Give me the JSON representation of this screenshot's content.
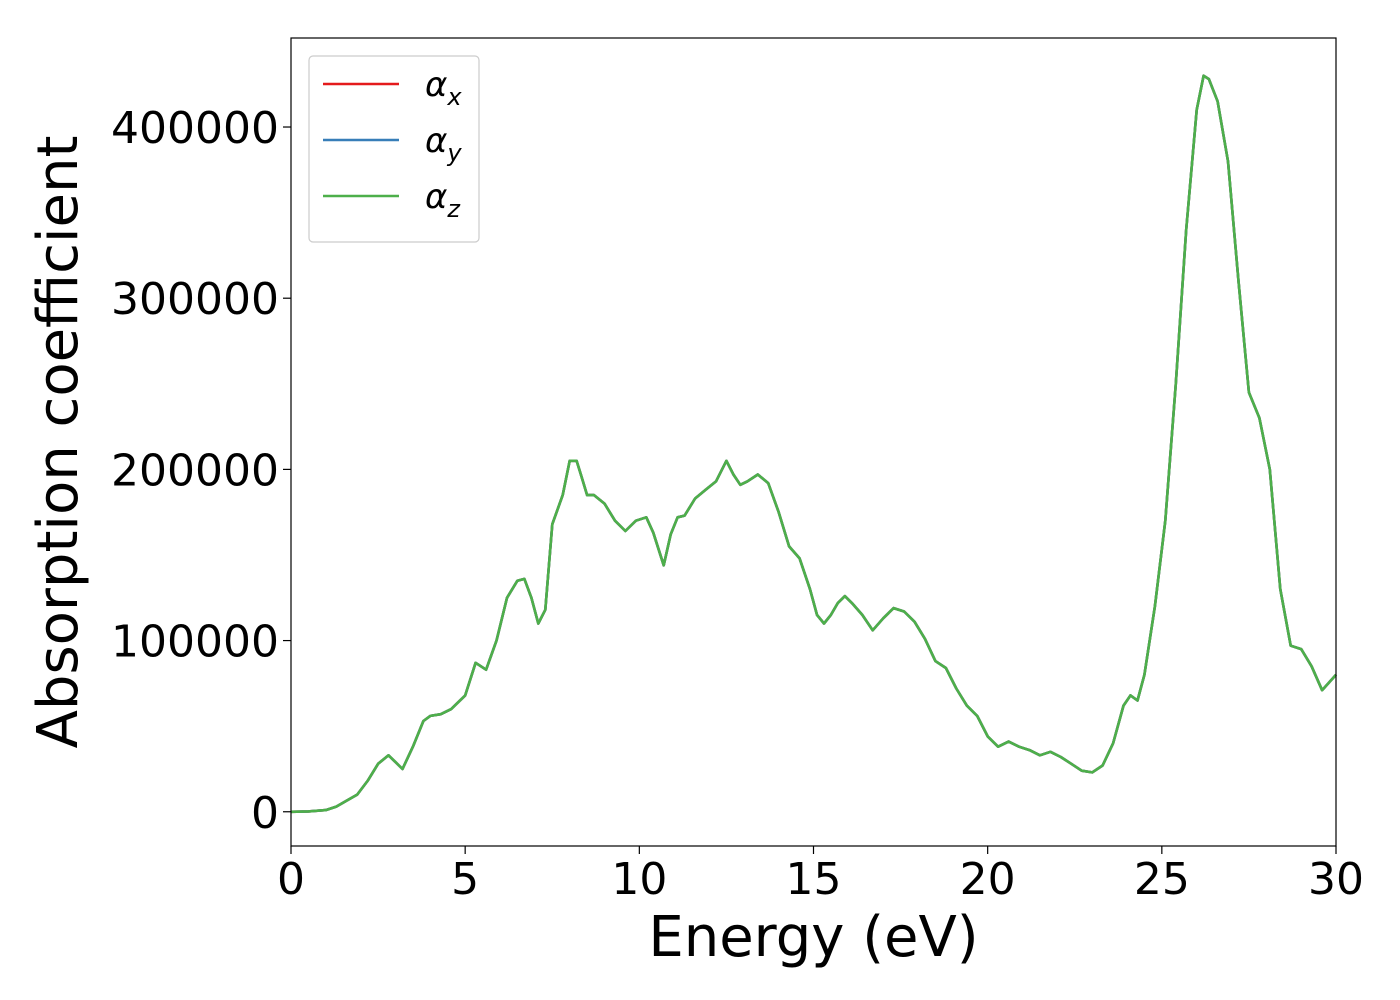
{
  "chart_data": {
    "type": "line",
    "xlabel": "Energy (eV)",
    "ylabel": "Absorption coefficient",
    "xlim": [
      0,
      30
    ],
    "ylim": [
      -20000,
      452000
    ],
    "x_ticks": [
      0,
      5,
      10,
      15,
      20,
      25,
      30
    ],
    "y_ticks": [
      0,
      100000,
      200000,
      300000,
      400000
    ],
    "grid": false,
    "legend_position": "top-left",
    "colors": {
      "x": "#e41a1c",
      "y": "#377eb8",
      "z": "#4daf4a"
    },
    "legend": [
      {
        "key": "x",
        "base": "α",
        "sub": "x"
      },
      {
        "key": "y",
        "base": "α",
        "sub": "y"
      },
      {
        "key": "z",
        "base": "α",
        "sub": "z"
      }
    ],
    "series": [
      {
        "key": "x",
        "x": [
          0,
          0.5,
          1,
          1.3,
          1.6,
          1.9,
          2.2,
          2.5,
          2.8,
          3.0,
          3.2,
          3.5,
          3.8,
          4.0,
          4.3,
          4.6,
          5.0,
          5.3,
          5.6,
          5.9,
          6.2,
          6.5,
          6.7,
          6.9,
          7.1,
          7.3,
          7.5,
          7.8,
          8.0,
          8.2,
          8.35,
          8.5,
          8.7,
          9.0,
          9.3,
          9.6,
          9.9,
          10.2,
          10.4,
          10.7,
          10.9,
          11.1,
          11.3,
          11.6,
          11.9,
          12.2,
          12.5,
          12.7,
          12.9,
          13.1,
          13.4,
          13.7,
          14.0,
          14.3,
          14.6,
          14.9,
          15.1,
          15.3,
          15.5,
          15.7,
          15.9,
          16.1,
          16.4,
          16.7,
          17.0,
          17.3,
          17.6,
          17.9,
          18.2,
          18.5,
          18.8,
          19.1,
          19.4,
          19.7,
          20.0,
          20.3,
          20.6,
          20.9,
          21.2,
          21.5,
          21.8,
          22.1,
          22.4,
          22.7,
          23.0,
          23.3,
          23.6,
          23.9,
          24.1,
          24.3,
          24.5,
          24.8,
          25.1,
          25.4,
          25.7,
          26.0,
          26.2,
          26.35,
          26.6,
          26.9,
          27.2,
          27.5,
          27.8,
          28.1,
          28.4,
          28.7,
          29.0,
          29.3,
          29.6,
          30.0
        ],
        "y": [
          0,
          200,
          1000,
          3000,
          6500,
          10000,
          18000,
          28000,
          33000,
          29000,
          25000,
          38000,
          53000,
          56000,
          57000,
          60000,
          68000,
          87000,
          83000,
          100000,
          125000,
          135000,
          136000,
          125000,
          110000,
          118000,
          168000,
          185000,
          205000,
          205000,
          195000,
          185000,
          185000,
          180000,
          170000,
          164000,
          170000,
          172000,
          163000,
          144000,
          162000,
          172000,
          173000,
          183000,
          188000,
          193000,
          205000,
          197000,
          191000,
          193000,
          197000,
          192000,
          175000,
          155000,
          148000,
          130000,
          115000,
          110000,
          115000,
          122000,
          126000,
          122000,
          115000,
          106000,
          113000,
          119000,
          117000,
          111000,
          101000,
          88000,
          84000,
          72000,
          62000,
          56000,
          44000,
          38000,
          41000,
          38000,
          36000,
          33000,
          35000,
          32000,
          28000,
          24000,
          23000,
          27000,
          40000,
          62000,
          68000,
          65000,
          80000,
          120000,
          170000,
          250000,
          340000,
          410000,
          430000,
          428000,
          415000,
          380000,
          310000,
          245000,
          230000,
          200000,
          130000,
          97000,
          95000,
          85000,
          71000,
          80000
        ]
      },
      {
        "key": "y",
        "x": [
          0,
          0.5,
          1,
          1.3,
          1.6,
          1.9,
          2.2,
          2.5,
          2.8,
          3.0,
          3.2,
          3.5,
          3.8,
          4.0,
          4.3,
          4.6,
          5.0,
          5.3,
          5.6,
          5.9,
          6.2,
          6.5,
          6.7,
          6.9,
          7.1,
          7.3,
          7.5,
          7.8,
          8.0,
          8.2,
          8.35,
          8.5,
          8.7,
          9.0,
          9.3,
          9.6,
          9.9,
          10.2,
          10.4,
          10.7,
          10.9,
          11.1,
          11.3,
          11.6,
          11.9,
          12.2,
          12.5,
          12.7,
          12.9,
          13.1,
          13.4,
          13.7,
          14.0,
          14.3,
          14.6,
          14.9,
          15.1,
          15.3,
          15.5,
          15.7,
          15.9,
          16.1,
          16.4,
          16.7,
          17.0,
          17.3,
          17.6,
          17.9,
          18.2,
          18.5,
          18.8,
          19.1,
          19.4,
          19.7,
          20.0,
          20.3,
          20.6,
          20.9,
          21.2,
          21.5,
          21.8,
          22.1,
          22.4,
          22.7,
          23.0,
          23.3,
          23.6,
          23.9,
          24.1,
          24.3,
          24.5,
          24.8,
          25.1,
          25.4,
          25.7,
          26.0,
          26.2,
          26.35,
          26.6,
          26.9,
          27.2,
          27.5,
          27.8,
          28.1,
          28.4,
          28.7,
          29.0,
          29.3,
          29.6,
          30.0
        ],
        "y": [
          0,
          200,
          1000,
          3000,
          6500,
          10000,
          18000,
          28000,
          33000,
          29000,
          25000,
          38000,
          53000,
          56000,
          57000,
          60000,
          68000,
          87000,
          83000,
          100000,
          125000,
          135000,
          136000,
          125000,
          110000,
          118000,
          168000,
          185000,
          205000,
          205000,
          195000,
          185000,
          185000,
          180000,
          170000,
          164000,
          170000,
          172000,
          163000,
          144000,
          162000,
          172000,
          173000,
          183000,
          188000,
          193000,
          205000,
          197000,
          191000,
          193000,
          197000,
          192000,
          175000,
          155000,
          148000,
          130000,
          115000,
          110000,
          115000,
          122000,
          126000,
          122000,
          115000,
          106000,
          113000,
          119000,
          117000,
          111000,
          101000,
          88000,
          84000,
          72000,
          62000,
          56000,
          44000,
          38000,
          41000,
          38000,
          36000,
          33000,
          35000,
          32000,
          28000,
          24000,
          23000,
          27000,
          40000,
          62000,
          68000,
          65000,
          80000,
          120000,
          170000,
          250000,
          340000,
          410000,
          430000,
          428000,
          415000,
          380000,
          310000,
          245000,
          230000,
          200000,
          130000,
          97000,
          95000,
          85000,
          71000,
          80000
        ]
      },
      {
        "key": "z",
        "x": [
          0,
          0.5,
          1,
          1.3,
          1.6,
          1.9,
          2.2,
          2.5,
          2.8,
          3.0,
          3.2,
          3.5,
          3.8,
          4.0,
          4.3,
          4.6,
          5.0,
          5.3,
          5.6,
          5.9,
          6.2,
          6.5,
          6.7,
          6.9,
          7.1,
          7.3,
          7.5,
          7.8,
          8.0,
          8.2,
          8.35,
          8.5,
          8.7,
          9.0,
          9.3,
          9.6,
          9.9,
          10.2,
          10.4,
          10.7,
          10.9,
          11.1,
          11.3,
          11.6,
          11.9,
          12.2,
          12.5,
          12.7,
          12.9,
          13.1,
          13.4,
          13.7,
          14.0,
          14.3,
          14.6,
          14.9,
          15.1,
          15.3,
          15.5,
          15.7,
          15.9,
          16.1,
          16.4,
          16.7,
          17.0,
          17.3,
          17.6,
          17.9,
          18.2,
          18.5,
          18.8,
          19.1,
          19.4,
          19.7,
          20.0,
          20.3,
          20.6,
          20.9,
          21.2,
          21.5,
          21.8,
          22.1,
          22.4,
          22.7,
          23.0,
          23.3,
          23.6,
          23.9,
          24.1,
          24.3,
          24.5,
          24.8,
          25.1,
          25.4,
          25.7,
          26.0,
          26.2,
          26.35,
          26.6,
          26.9,
          27.2,
          27.5,
          27.8,
          28.1,
          28.4,
          28.7,
          29.0,
          29.3,
          29.6,
          30.0
        ],
        "y": [
          0,
          200,
          1000,
          3000,
          6500,
          10000,
          18000,
          28000,
          33000,
          29000,
          25000,
          38000,
          53000,
          56000,
          57000,
          60000,
          68000,
          87000,
          83000,
          100000,
          125000,
          135000,
          136000,
          125000,
          110000,
          118000,
          168000,
          185000,
          205000,
          205000,
          195000,
          185000,
          185000,
          180000,
          170000,
          164000,
          170000,
          172000,
          163000,
          144000,
          162000,
          172000,
          173000,
          183000,
          188000,
          193000,
          205000,
          197000,
          191000,
          193000,
          197000,
          192000,
          175000,
          155000,
          148000,
          130000,
          115000,
          110000,
          115000,
          122000,
          126000,
          122000,
          115000,
          106000,
          113000,
          119000,
          117000,
          111000,
          101000,
          88000,
          84000,
          72000,
          62000,
          56000,
          44000,
          38000,
          41000,
          38000,
          36000,
          33000,
          35000,
          32000,
          28000,
          24000,
          23000,
          27000,
          40000,
          62000,
          68000,
          65000,
          80000,
          120000,
          170000,
          250000,
          340000,
          410000,
          430000,
          428000,
          415000,
          380000,
          310000,
          245000,
          230000,
          200000,
          130000,
          97000,
          95000,
          85000,
          71000,
          80000
        ]
      }
    ]
  }
}
